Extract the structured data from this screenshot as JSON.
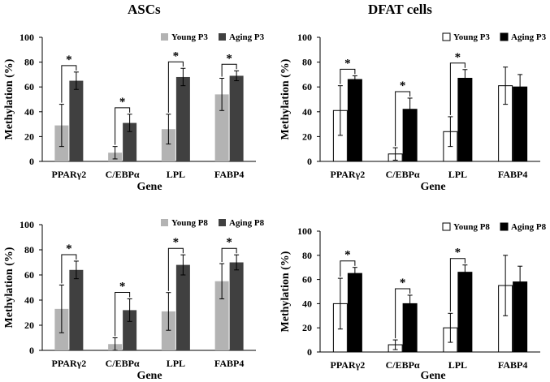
{
  "column_titles": [
    "ASCs",
    "DFAT cells"
  ],
  "chart_data": [
    {
      "type": "bar",
      "panel": "ASCs P3",
      "style": "gray",
      "categories": [
        "PPARγ2",
        "C/EBPα",
        "LPL",
        "FABP4"
      ],
      "series": [
        {
          "name": "Young P3",
          "values": [
            29,
            7,
            26,
            54
          ],
          "errors": [
            17,
            5,
            12,
            13
          ],
          "color": "#b3b3b3"
        },
        {
          "name": "Aging P3",
          "values": [
            65,
            31,
            68,
            69
          ],
          "errors": [
            7,
            7,
            7,
            4
          ],
          "color": "#404040"
        }
      ],
      "significance": [
        "*",
        "*",
        "*",
        "*"
      ],
      "title": "",
      "xlabel": "Gene",
      "ylabel": "Methylation (%)",
      "ylim": [
        0,
        100
      ],
      "yticks": [
        0,
        20,
        40,
        60,
        80,
        100
      ],
      "legend": "top-right",
      "grid": false
    },
    {
      "type": "bar",
      "panel": "DFAT cells P3",
      "style": "bw",
      "categories": [
        "PPARγ2",
        "C/EBPα",
        "LPL",
        "FABP4"
      ],
      "series": [
        {
          "name": "Young P3",
          "values": [
            41,
            6,
            24,
            61
          ],
          "errors": [
            20,
            5,
            12,
            15
          ],
          "color": "#ffffff"
        },
        {
          "name": "Aging P3",
          "values": [
            66,
            42,
            67,
            60
          ],
          "errors": [
            3,
            9,
            7,
            10
          ],
          "color": "#000000"
        }
      ],
      "significance": [
        "*",
        "*",
        "*",
        ""
      ],
      "title": "",
      "xlabel": "Gene",
      "ylabel": "Methylation (%)",
      "ylim": [
        0,
        100
      ],
      "yticks": [
        0,
        20,
        40,
        60,
        80,
        100
      ],
      "legend": "top-right",
      "grid": false
    },
    {
      "type": "bar",
      "panel": "ASCs P8",
      "style": "gray",
      "categories": [
        "PPARγ2",
        "C/EBPα",
        "LPL",
        "FABP4"
      ],
      "series": [
        {
          "name": "Young P8",
          "values": [
            33,
            5,
            31,
            55
          ],
          "errors": [
            19,
            5,
            15,
            14
          ],
          "color": "#b3b3b3"
        },
        {
          "name": "Aging P8",
          "values": [
            64,
            32,
            68,
            70
          ],
          "errors": [
            7,
            9,
            8,
            6
          ],
          "color": "#404040"
        }
      ],
      "significance": [
        "*",
        "*",
        "*",
        "*"
      ],
      "title": "",
      "xlabel": "Gene",
      "ylabel": "Methylation (%)",
      "ylim": [
        0,
        100
      ],
      "yticks": [
        0,
        20,
        40,
        60,
        80,
        100
      ],
      "legend": "top-right",
      "grid": false
    },
    {
      "type": "bar",
      "panel": "DFAT cells P8",
      "style": "bw",
      "categories": [
        "PPARγ2",
        "C/EBPα",
        "LPL",
        "FABP4"
      ],
      "series": [
        {
          "name": "Young P8",
          "values": [
            40,
            6,
            20,
            55
          ],
          "errors": [
            21,
            4,
            12,
            25
          ],
          "color": "#ffffff"
        },
        {
          "name": "Aging P8",
          "values": [
            65,
            40,
            66,
            58
          ],
          "errors": [
            5,
            7,
            6,
            13
          ],
          "color": "#000000"
        }
      ],
      "significance": [
        "*",
        "*",
        "*",
        ""
      ],
      "title": "",
      "xlabel": "Gene",
      "ylabel": "Methylation (%)",
      "ylim": [
        0,
        100
      ],
      "yticks": [
        0,
        20,
        40,
        60,
        80,
        100
      ],
      "legend": "top-right",
      "grid": false
    }
  ]
}
